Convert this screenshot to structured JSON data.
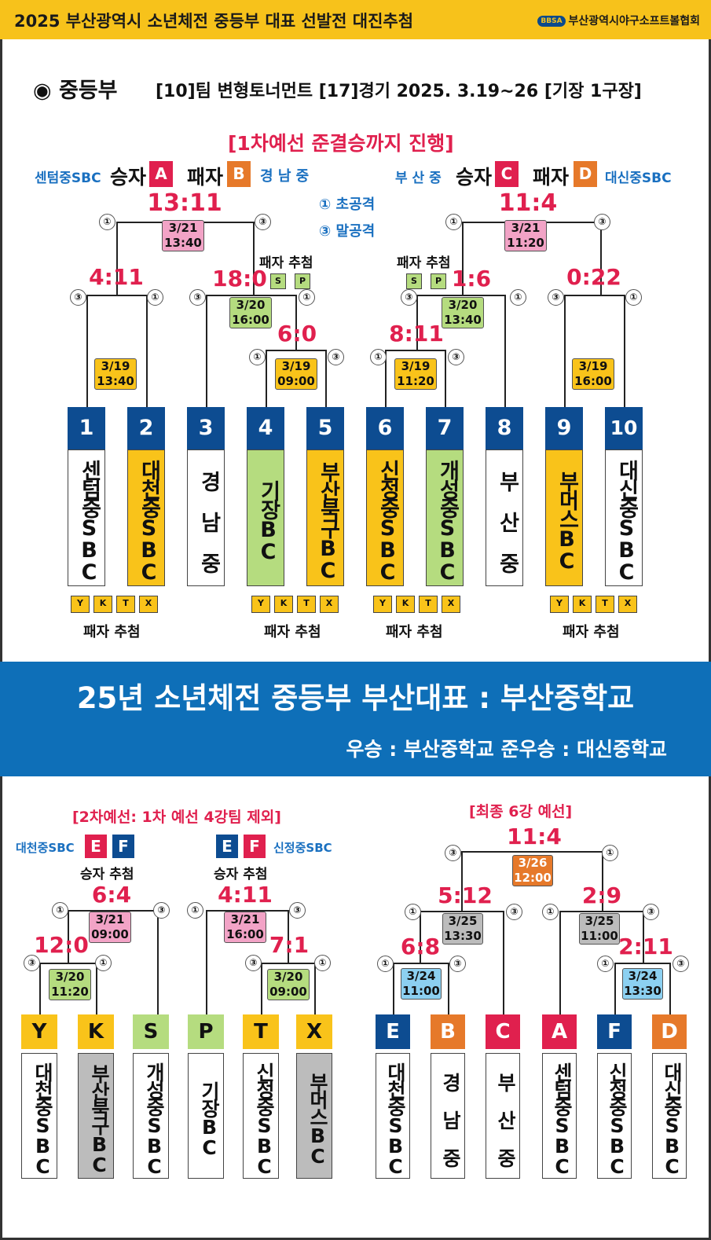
{
  "header": {
    "title": "2025 부산광역시 소년체전 중등부 대표 선발전 대진추첨",
    "logo": "BBSA",
    "org": "부산광역시야구소프트볼협회"
  },
  "info": {
    "division": "◉ 중등부",
    "detail": "[10]팀 변형토너먼트 [17]경기 2025. 3.19~26 [기장 1구장]"
  },
  "r1": {
    "title": "[1차예선 준결승까지 진행]",
    "left_win_team": "센텀중SBC",
    "left_win_label": "승자",
    "left_win_sq": "A",
    "left_lose_label": "패자",
    "left_lose_sq": "B",
    "left_lose_team": "경 남 중",
    "right_win_team": "부 산 중",
    "right_win_label": "승자",
    "right_win_sq": "C",
    "right_lose_label": "패자",
    "right_lose_sq": "D",
    "right_lose_team": "대신중SBC",
    "legend1": "① 초공격",
    "legend3": "③ 말공격",
    "draw": "패자 추첨",
    "scores": {
      "a": "13:11",
      "b": "11:4",
      "c": "4:11",
      "d": "18:0",
      "e": "1:6",
      "f": "0:22",
      "g": "6:0",
      "h": "8:11"
    },
    "dates": {
      "a": "3/21\n13:40",
      "b": "3/21\n11:20",
      "c": "3/19\n13:40",
      "d": "3/20\n16:00",
      "e": "3/20\n13:40",
      "f": "3/19\n16:00",
      "g": "3/19\n09:00",
      "h": "3/19\n11:20"
    },
    "numbers": [
      "1",
      "2",
      "3",
      "4",
      "5",
      "6",
      "7",
      "8",
      "9",
      "10"
    ],
    "teams": [
      "센텀중SBC",
      "대천중SBC",
      "경 남 중",
      "기장BC",
      "부산북구BC",
      "신정중SBC",
      "개성중SBC",
      "부 산 중",
      "부머스BC",
      "대신중SBC"
    ],
    "marks": [
      "Y",
      "K",
      "T",
      "X"
    ],
    "sp": [
      "S",
      "P"
    ]
  },
  "banner": {
    "main": "25년 소년체전 중등부 부산대표 : 부산중학교",
    "sub": "우승 : 부산중학교 준우승 : 대신중학교"
  },
  "r2": {
    "title": "[2차예선: 1차 예선 4강팀 제외]",
    "left_team": "대천중SBC",
    "right_team": "신정중SBC",
    "left_sq": [
      "E",
      "F"
    ],
    "right_sq": [
      "E",
      "F"
    ],
    "draw": "승자 추첨",
    "scores": {
      "a": "6:4",
      "b": "12:0",
      "c": "4:11",
      "d": "7:1"
    },
    "dates": {
      "a": "3/21\n09:00",
      "b": "3/20\n11:20",
      "c": "3/21\n16:00",
      "d": "3/20\n09:00"
    },
    "letters": [
      "Y",
      "K",
      "S",
      "P",
      "T",
      "X"
    ],
    "teams": [
      "대천중SBC",
      "부산북구BC",
      "개성중SBC",
      "기장BC",
      "신정중SBC",
      "부머스BC"
    ]
  },
  "r3": {
    "title": "[최종 6강 예선]",
    "scores": {
      "a": "11:4",
      "b": "5:12",
      "c": "2:9",
      "d": "6:8",
      "e": "2:11"
    },
    "dates": {
      "a": "3/26\n12:00",
      "b": "3/25\n13:30",
      "c": "3/25\n11:00",
      "d": "3/24\n11:00",
      "e": "3/24\n13:30"
    },
    "letters": [
      "E",
      "B",
      "C",
      "A",
      "F",
      "D"
    ],
    "teams": [
      "대천중SBC",
      "경 남 중",
      "부 산 중",
      "센텀중SBC",
      "신정중SBC",
      "대신중SBC"
    ]
  },
  "colors": {
    "yellow": "#f7c21b",
    "blue": "#0e6fb8",
    "red": "#e0204e",
    "navy": "#0d4c91",
    "green": "#b5dc7f",
    "pink": "#f2a3c6",
    "orange": "#e6792a"
  }
}
